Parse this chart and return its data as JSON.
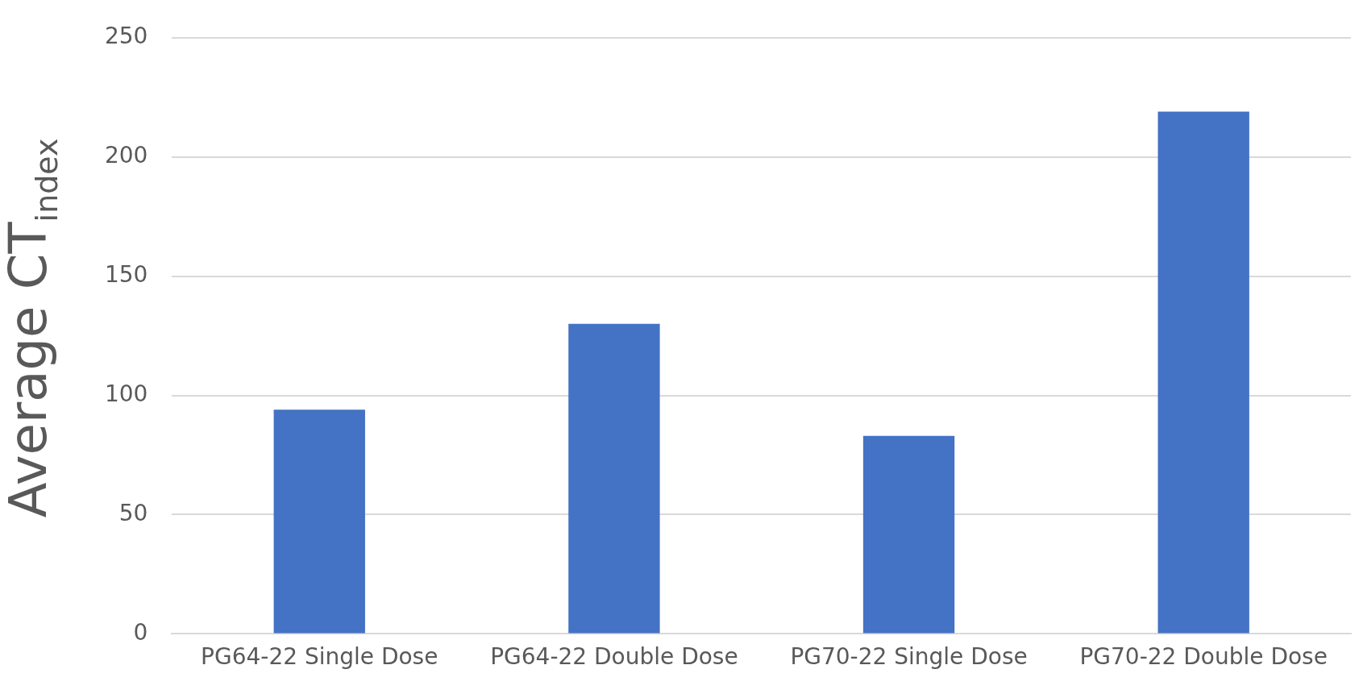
{
  "chart_data": {
    "type": "bar",
    "ylabel": "Average CT$_{index}$",
    "categories": [
      "PG64-22 Single Dose",
      "PG64-22 Double Dose",
      "PG70-22 Single Dose",
      "PG70-22 Double Dose"
    ],
    "values": [
      94,
      130,
      83,
      219
    ],
    "color": "#4472c4",
    "ylim": [
      0,
      250
    ],
    "yticks": [
      0,
      50,
      100,
      150,
      200,
      250
    ],
    "grid": "y",
    "legend": false
  }
}
